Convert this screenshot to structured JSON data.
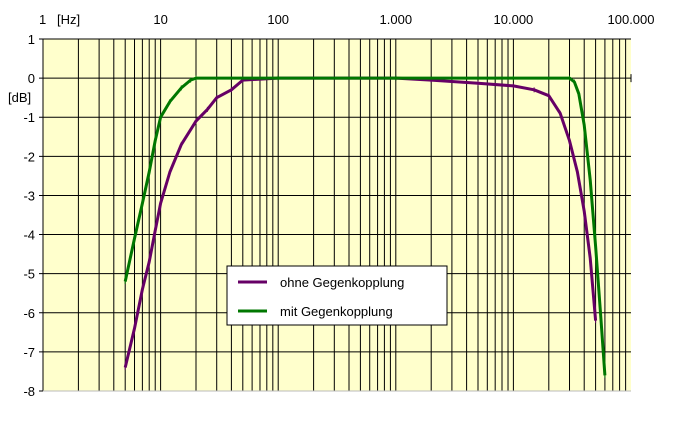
{
  "chart_data": {
    "type": "line",
    "title": "",
    "xlabel": "[Hz]",
    "ylabel": "[dB]",
    "xscale": "log",
    "xlim": [
      1,
      100000
    ],
    "ylim": [
      -8,
      1
    ],
    "grid": true,
    "x_tick_labels": [
      {
        "value": 1,
        "label": "1"
      },
      {
        "value": 10,
        "label": "10"
      },
      {
        "value": 100,
        "label": "100"
      },
      {
        "value": 1000,
        "label": "1.000"
      },
      {
        "value": 10000,
        "label": "10.000"
      },
      {
        "value": 100000,
        "label": "100.000"
      }
    ],
    "y_ticks": [
      1,
      0,
      -1,
      -2,
      -3,
      -4,
      -5,
      -6,
      -7,
      -8
    ],
    "legend_position": "center-bottom",
    "series": [
      {
        "name": "ohne Gegenkopplung",
        "color": "#660066",
        "points": [
          [
            5,
            -7.4
          ],
          [
            6,
            -6.4
          ],
          [
            7,
            -5.4
          ],
          [
            8,
            -4.7
          ],
          [
            9,
            -3.9
          ],
          [
            10,
            -3.2
          ],
          [
            12,
            -2.4
          ],
          [
            15,
            -1.7
          ],
          [
            20,
            -1.1
          ],
          [
            25,
            -0.8
          ],
          [
            30,
            -0.5
          ],
          [
            40,
            -0.3
          ],
          [
            50,
            -0.05
          ],
          [
            100,
            0
          ],
          [
            1000,
            0
          ],
          [
            2000,
            -0.05
          ],
          [
            5000,
            -0.13
          ],
          [
            10000,
            -0.2
          ],
          [
            15000,
            -0.3
          ],
          [
            20000,
            -0.45
          ],
          [
            25000,
            -0.9
          ],
          [
            30000,
            -1.6
          ],
          [
            35000,
            -2.4
          ],
          [
            40000,
            -3.4
          ],
          [
            45000,
            -4.6
          ],
          [
            50000,
            -6.2
          ]
        ]
      },
      {
        "name": "mit Gegenkopplung",
        "color": "#007700",
        "points": [
          [
            5,
            -5.2
          ],
          [
            6,
            -4.1
          ],
          [
            7,
            -3.2
          ],
          [
            8,
            -2.4
          ],
          [
            9,
            -1.6
          ],
          [
            10,
            -1.0
          ],
          [
            12,
            -0.6
          ],
          [
            15,
            -0.25
          ],
          [
            18,
            -0.05
          ],
          [
            20,
            0
          ],
          [
            100,
            0
          ],
          [
            1000,
            0
          ],
          [
            10000,
            0
          ],
          [
            30000,
            0
          ],
          [
            33000,
            -0.1
          ],
          [
            36000,
            -0.4
          ],
          [
            40000,
            -1.2
          ],
          [
            45000,
            -2.6
          ],
          [
            50000,
            -4.3
          ],
          [
            55000,
            -6.0
          ],
          [
            60000,
            -7.6
          ]
        ]
      }
    ]
  }
}
